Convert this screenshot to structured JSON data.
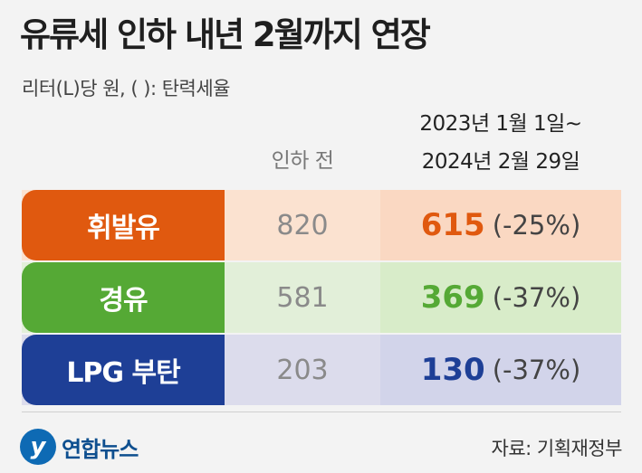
{
  "title": "유류세 인하 내년 2월까지 연장",
  "subtitle": "리터(L)당 원, ( ): 탄력세율",
  "columns": {
    "before": "인하 전",
    "after_line1": "2023년 1월 1일~",
    "after_line2": "2024년 2월 29일"
  },
  "colors": {
    "gasoline": "#e0590f",
    "diesel": "#55a935",
    "lpg": "#1e3f96"
  },
  "chart_data": {
    "type": "table",
    "title": "유류세 인하 내년 2월까지 연장",
    "unit": "리터(L)당 원",
    "headers": [
      "",
      "인하 전",
      "2023년 1월 1일~ 2024년 2월 29일"
    ],
    "rows": [
      {
        "name": "휘발유",
        "before": "820",
        "after": "615",
        "rate": "(-25%)"
      },
      {
        "name": "경유",
        "before": "581",
        "after": "369",
        "rate": "(-37%)"
      },
      {
        "name": "LPG 부탄",
        "before": "203",
        "after": "130",
        "rate": "(-37%)"
      }
    ]
  },
  "footer": {
    "logo_text": "연합뉴스",
    "source": "자료: 기획재정부"
  }
}
